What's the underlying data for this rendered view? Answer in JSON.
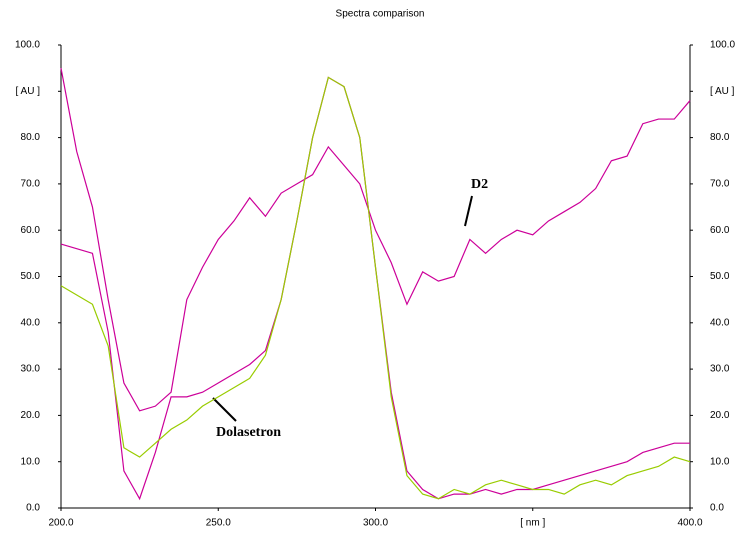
{
  "chart_data": {
    "type": "line",
    "title": "Spectra comparison",
    "x": [
      200,
      205,
      210,
      215,
      220,
      225,
      230,
      235,
      240,
      245,
      250,
      255,
      260,
      265,
      270,
      275,
      280,
      285,
      290,
      295,
      300,
      305,
      310,
      315,
      320,
      325,
      330,
      335,
      340,
      345,
      350,
      355,
      360,
      365,
      370,
      375,
      380,
      385,
      390,
      395,
      400
    ],
    "series": [
      {
        "color": "#cc0099",
        "values": [
          95,
          77,
          65,
          45,
          27,
          21,
          22,
          25,
          45,
          52,
          58,
          62,
          67,
          63,
          68,
          70,
          72,
          78,
          74,
          70,
          60,
          53,
          44,
          51,
          49,
          50,
          58,
          55,
          58,
          60,
          59,
          62,
          64,
          66,
          69,
          75,
          76,
          83,
          84,
          84,
          88
        ]
      },
      {
        "color": "#cc0099",
        "values": [
          57,
          56,
          55,
          38,
          8,
          2,
          12,
          24,
          24,
          25,
          27,
          29,
          31,
          34,
          45,
          62,
          80,
          93,
          91,
          80,
          52,
          25,
          8,
          4,
          2,
          3,
          3,
          4,
          3,
          4,
          4,
          5,
          6,
          7,
          8,
          9,
          10,
          12,
          13,
          14,
          14
        ]
      },
      {
        "color": "#99cc00",
        "values": [
          48,
          46,
          44,
          35,
          13,
          11,
          14,
          17,
          19,
          22,
          24,
          26,
          28,
          33,
          45,
          62,
          80,
          93,
          91,
          80,
          52,
          24,
          7,
          3,
          2,
          4,
          3,
          5,
          6,
          5,
          4,
          4,
          3,
          5,
          6,
          5,
          7,
          8,
          9,
          11,
          10
        ]
      }
    ],
    "annotations": [
      "D2",
      "Dolasetron"
    ],
    "xlim": [
      200,
      400
    ],
    "xticks": [
      {
        "value": 200,
        "label": "200.0"
      },
      {
        "value": 250,
        "label": "250.0"
      },
      {
        "value": 300,
        "label": "300.0"
      },
      {
        "value": 350,
        "label": "[ nm ]"
      },
      {
        "value": 400,
        "label": "400.0"
      }
    ],
    "ylim": [
      0,
      100
    ],
    "yticks": [
      {
        "value": 0,
        "label": "0.0"
      },
      {
        "value": 10,
        "label": "10.0"
      },
      {
        "value": 20,
        "label": "20.0"
      },
      {
        "value": 30,
        "label": "30.0"
      },
      {
        "value": 40,
        "label": "40.0"
      },
      {
        "value": 50,
        "label": "50.0"
      },
      {
        "value": 60,
        "label": "60.0"
      },
      {
        "value": 70,
        "label": "70.0"
      },
      {
        "value": 80,
        "label": "80.0"
      },
      {
        "value": 90,
        "label": "[ AU ]"
      },
      {
        "value": 100,
        "label": "100.0"
      }
    ],
    "right_axis": true
  }
}
